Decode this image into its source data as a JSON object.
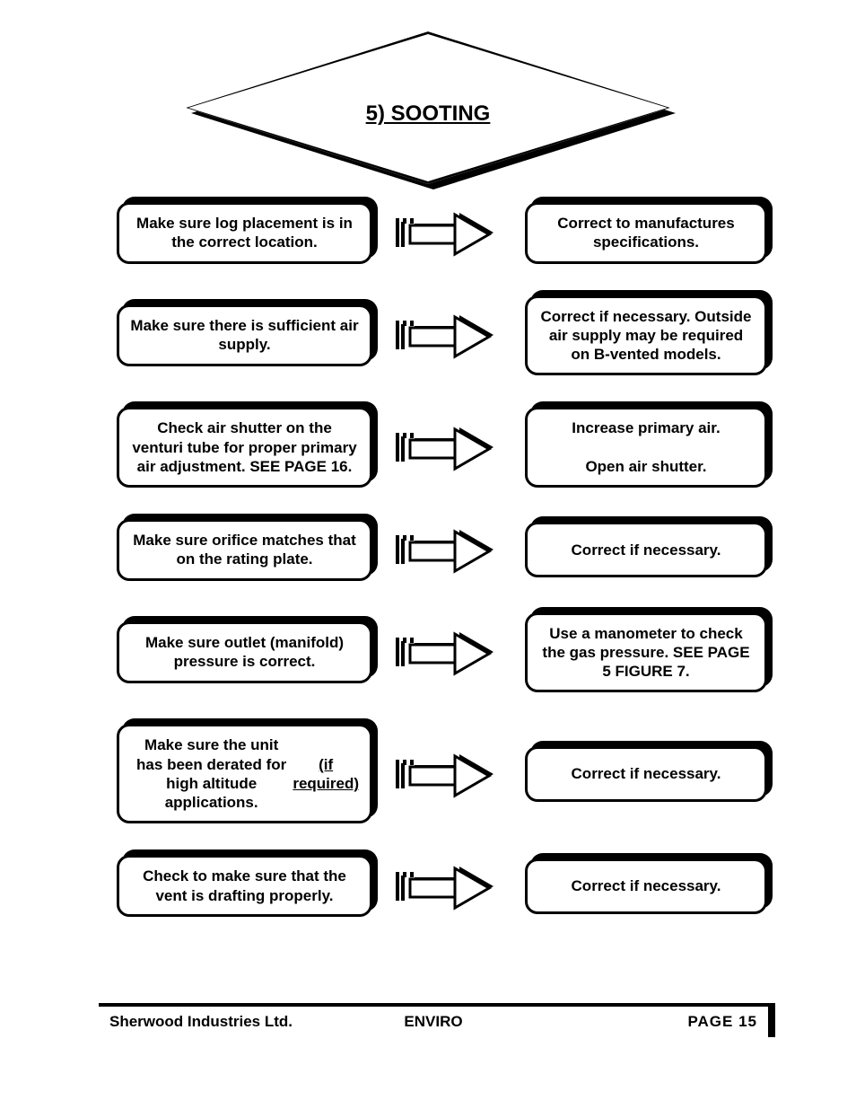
{
  "title": "5) SOOTING",
  "rows": [
    {
      "left": "Make sure log placement is in the correct location.",
      "right": "Correct to manufactures specifications."
    },
    {
      "left": "Make sure there is sufficient air supply.",
      "right": "Correct if necessary. Outside air supply may be required on B-vented models."
    },
    {
      "left": "Check air shutter on the venturi tube for proper primary air adjustment. SEE PAGE 16.",
      "right": "Increase primary air.\n\nOpen air shutter."
    },
    {
      "left": "Make sure orifice matches that on the rating plate.",
      "right": "Correct if necessary."
    },
    {
      "left": "Make sure outlet (manifold) pressure is correct.",
      "right": "Use a manometer to check the gas pressure. SEE PAGE 5 FIGURE 7."
    },
    {
      "left_pre": "Make sure the unit has been derated for high altitude applications.",
      "left_ul": "(if required)",
      "right": "Correct if necessary."
    },
    {
      "left": "Check to make sure that the vent is drafting properly.",
      "right": "Correct if necessary."
    }
  ],
  "footer": {
    "left": "Sherwood Industries Ltd.",
    "mid": "ENVIRO",
    "right": "PAGE   15"
  },
  "icons": {
    "arrow": "arrow-right-block"
  },
  "colors": {
    "text": "#000000",
    "background": "#ffffff"
  }
}
